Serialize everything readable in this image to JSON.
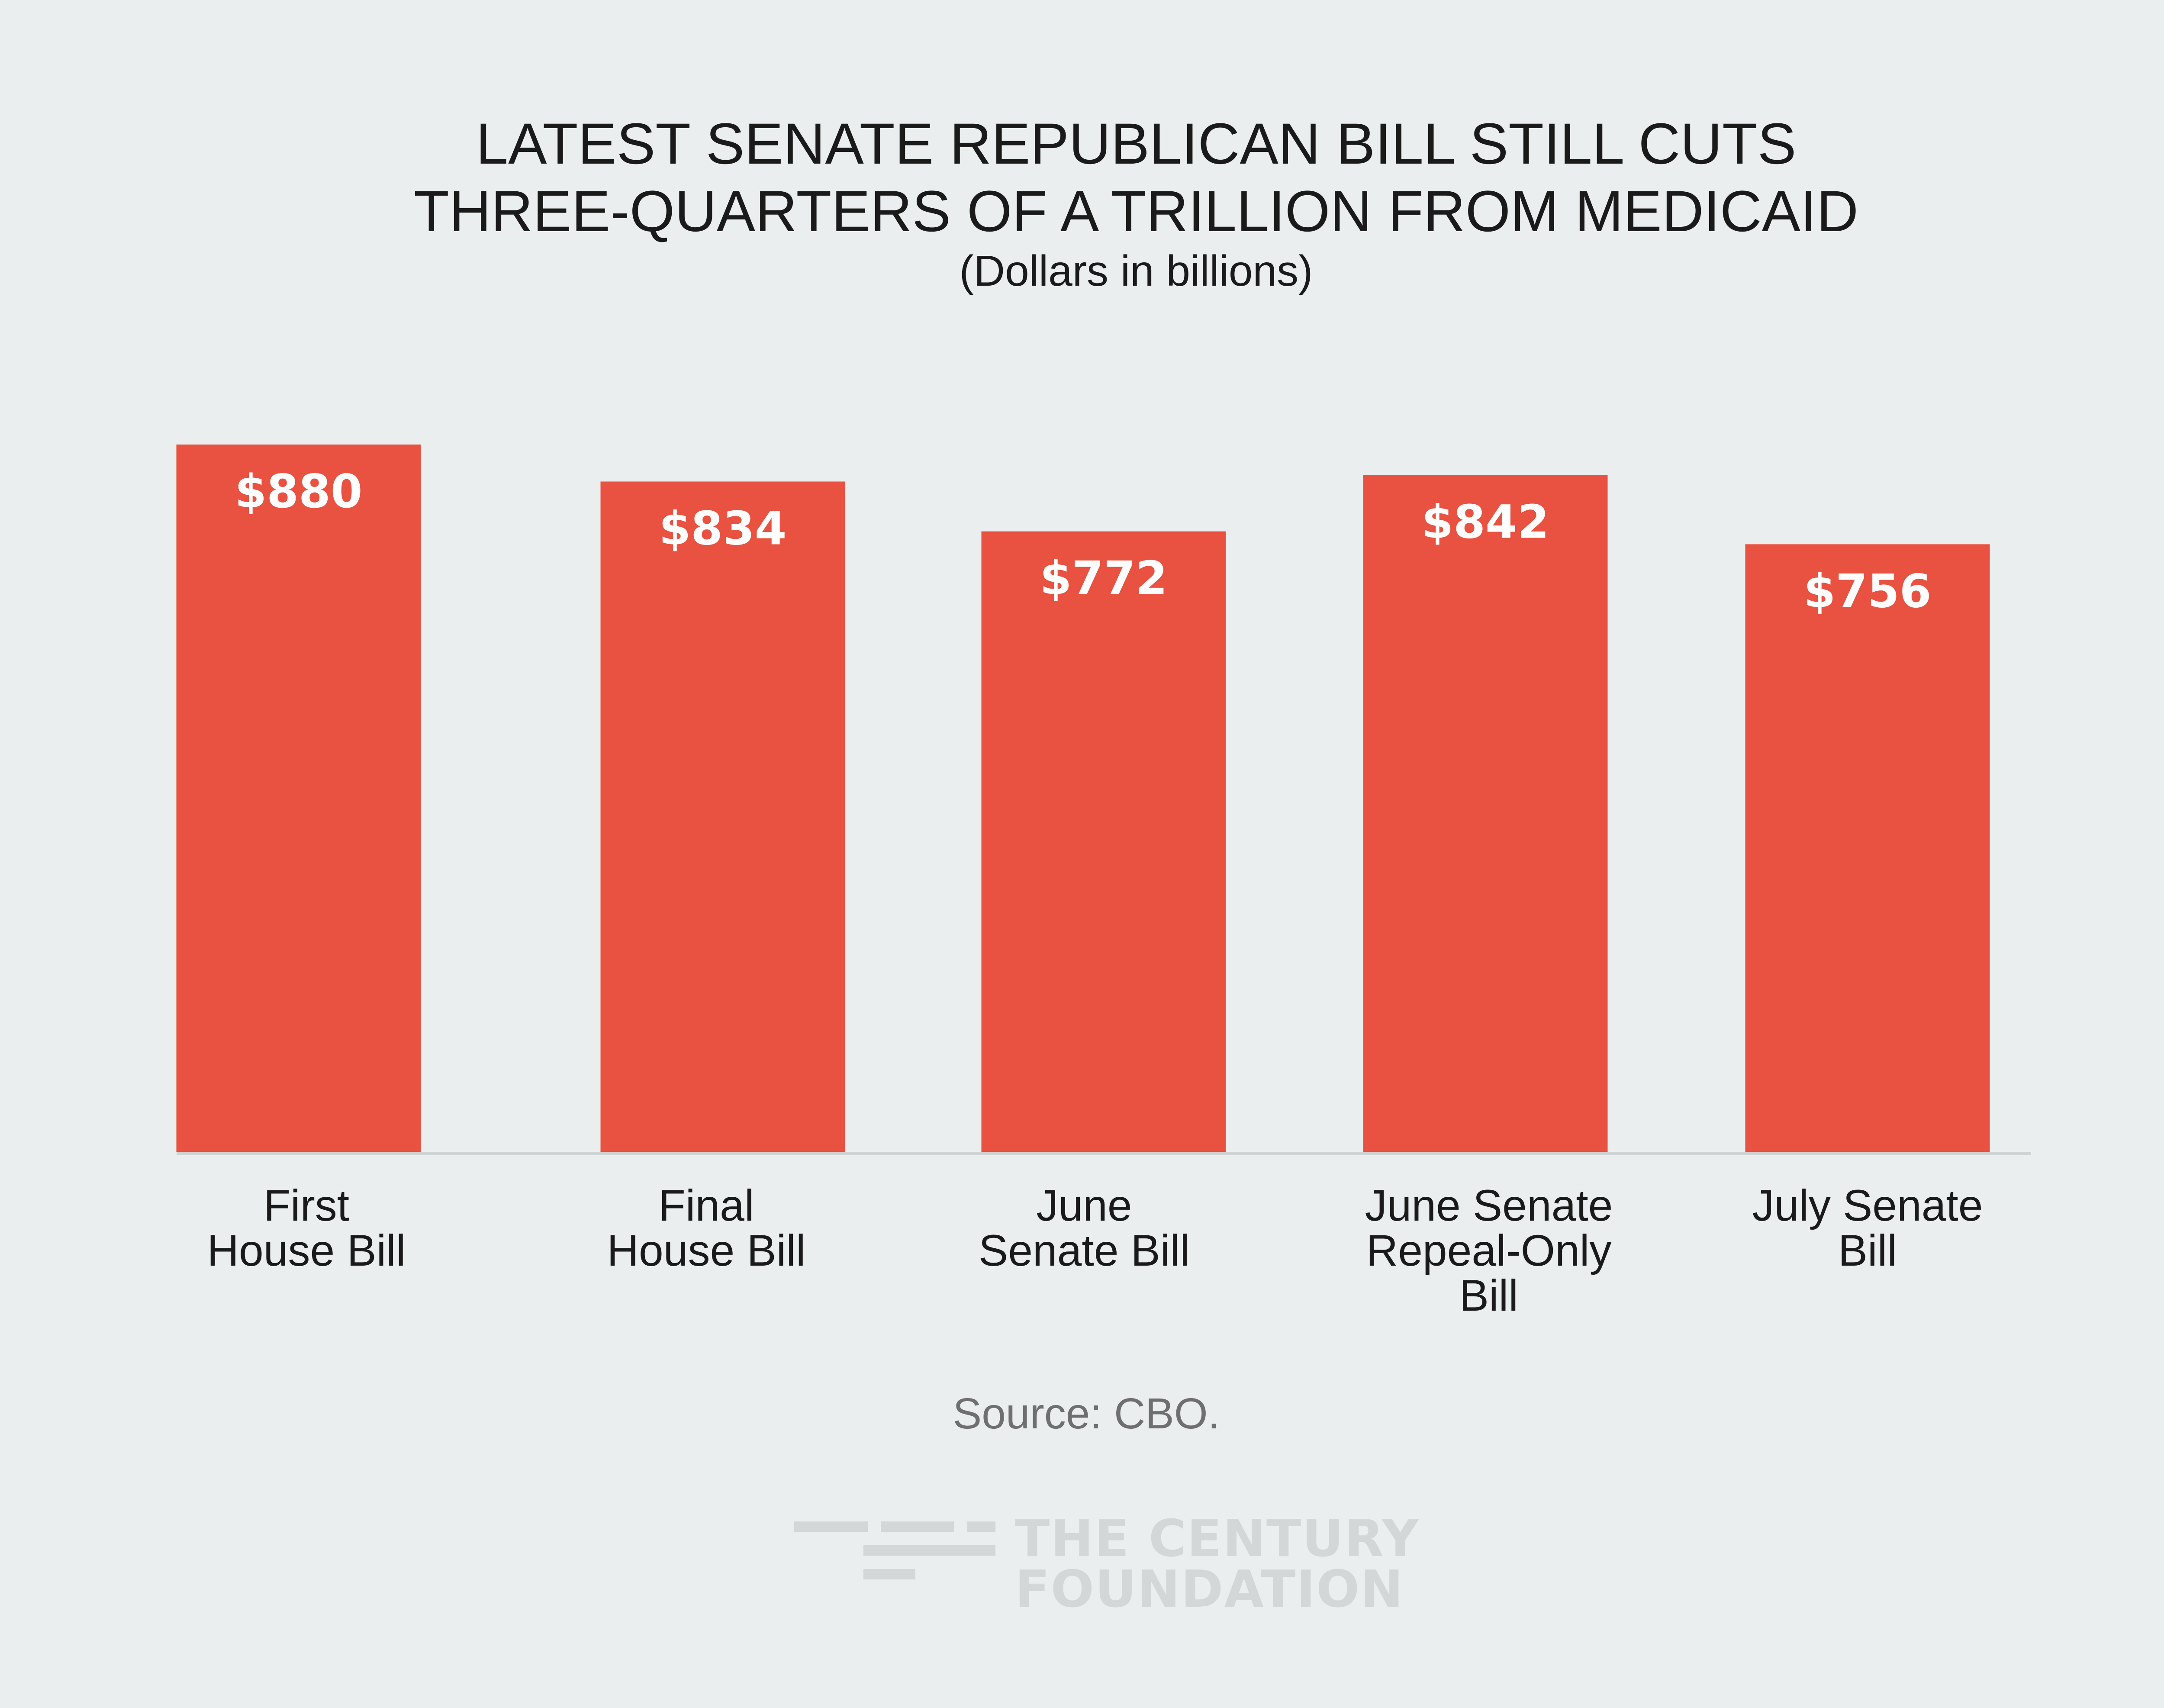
{
  "chart_data": {
    "type": "bar",
    "title_lines": [
      "LATEST SENATE REPUBLICAN BILL STILL CUTS",
      "THREE-QUARTERS OF A TRILLION FROM MEDICAID"
    ],
    "subtitle": "(Dollars in billions)",
    "categories": [
      "First House Bill",
      "Final House Bill",
      "June Senate Bill",
      "June Senate Repeal-Only Bill",
      "July Senate Bill"
    ],
    "category_label_lines": [
      [
        "First",
        "House Bill"
      ],
      [
        "Final",
        "House Bill"
      ],
      [
        "June",
        "Senate Bill"
      ],
      [
        "June Senate",
        "Repeal-Only",
        "Bill"
      ],
      [
        "July Senate",
        "Bill"
      ]
    ],
    "values": [
      880,
      834,
      772,
      842,
      756
    ],
    "value_labels": [
      "$880",
      "$834",
      "$772",
      "$842",
      "$756"
    ],
    "ylim": [
      0,
      880
    ],
    "xlabel": "",
    "ylabel": "",
    "grid": false,
    "bar_color": "#e95140",
    "source": "Source: CBO."
  },
  "branding": {
    "logo_line1": "THE CENTURY",
    "logo_line2": "FOUNDATION",
    "logo_icon": "century-foundation-stripes-icon"
  }
}
